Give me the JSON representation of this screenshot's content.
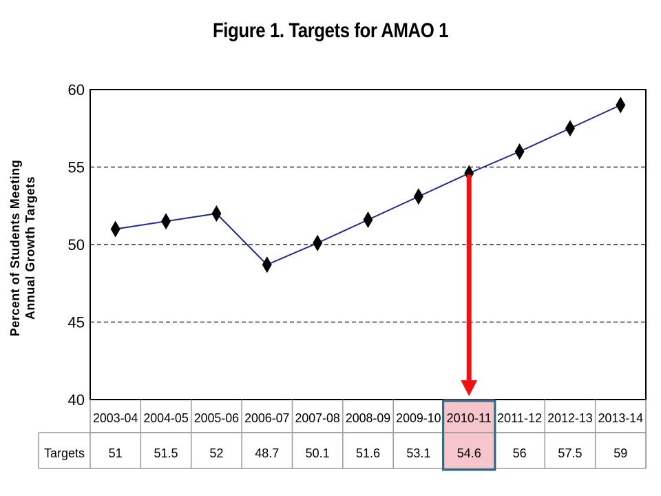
{
  "chart_data": {
    "type": "line",
    "title": "Figure 1.  Targets for AMAO 1",
    "ylabel_lines": [
      "Percent of Students Meeting",
      "Annual Growth Targets"
    ],
    "xlabel": "",
    "categories": [
      "2003-04",
      "2004-05",
      "2005-06",
      "2006-07",
      "2007-08",
      "2008-09",
      "2009-10",
      "2010-11",
      "2011-12",
      "2012-13",
      "2013-14"
    ],
    "series": [
      {
        "values": [
          51,
          51.5,
          52,
          48.7,
          50.1,
          51.6,
          53.1,
          54.6,
          56,
          57.5,
          59
        ]
      }
    ],
    "table_row_label": "Targets",
    "table_values": [
      "51",
      "51.5",
      "52",
      "48.7",
      "50.1",
      "51.6",
      "53.1",
      "54.6",
      "56",
      "57.5",
      "59"
    ],
    "ylim": [
      40,
      60
    ],
    "yticks": [
      40,
      45,
      50,
      55,
      60
    ],
    "gridlines": [
      45,
      50,
      55
    ],
    "grid": "dashed horizontal",
    "highlight_category": "2010-11",
    "line_color": "#1f2a8a",
    "marker": "diamond",
    "marker_color": "#000000",
    "arrow_color": "#ee1111",
    "highlight_fill": "#f7c6cc",
    "highlight_border": "#2e6a84"
  }
}
